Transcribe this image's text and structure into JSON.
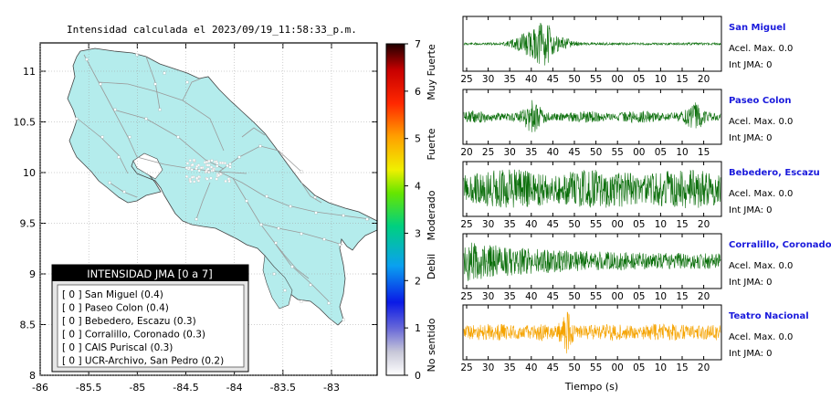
{
  "map": {
    "title": "Intensidad calculada el 2023/09/19_11:58:33_p.m.",
    "land_color": "#b4ecec",
    "x_ticks": [
      "-86",
      "-85.5",
      "-85",
      "-84.5",
      "-84",
      "-83.5",
      "-83"
    ],
    "y_ticks": [
      "11",
      "10.5",
      "10",
      "9.5",
      "9",
      "8.5",
      "8"
    ],
    "legend": {
      "title": "INTENSIDAD JMA [0 a 7]",
      "entries": [
        "[ 0 ]  San Miguel (0.4)",
        "[ 0 ]  Paseo Colon (0.4)",
        "[ 0 ]  Bebedero, Escazu (0.3)",
        "[ 0 ]  Corralillo, Coronado (0.3)",
        "[ 0 ]  CAIS Puriscal (0.3)",
        "[ 0 ]  UCR-Archivo, San Pedro (0.2)"
      ]
    }
  },
  "colorbar": {
    "ticks": [
      "7",
      "6",
      "5",
      "4",
      "3",
      "2",
      "1",
      "0"
    ],
    "labels": [
      "Muy Fuerte",
      "Fuerte",
      "Moderado",
      "Debil",
      "No sentido"
    ]
  },
  "waveforms": {
    "xlabel": "Tiempo (s)",
    "panels": [
      {
        "name": "San Miguel",
        "color": "#0a6e0a",
        "accel": "Acel. Max. 0.0",
        "int": "Int JMA: 0",
        "ticks": [
          "25",
          "30",
          "35",
          "40",
          "45",
          "50",
          "55",
          "00",
          "05",
          "10",
          "15",
          "20"
        ]
      },
      {
        "name": "Paseo Colon",
        "color": "#0a6e0a",
        "accel": "Acel. Max. 0.0",
        "int": "Int JMA: 0",
        "ticks": [
          "20",
          "25",
          "30",
          "35",
          "40",
          "45",
          "50",
          "55",
          "00",
          "05",
          "10",
          "15"
        ]
      },
      {
        "name": "Bebedero, Escazu",
        "color": "#0a6e0a",
        "accel": "Acel. Max. 0.0",
        "int": "Int JMA: 0",
        "ticks": [
          "25",
          "30",
          "35",
          "40",
          "45",
          "50",
          "55",
          "00",
          "05",
          "10",
          "15",
          "20"
        ]
      },
      {
        "name": "Corralillo, Coronado",
        "color": "#0a6e0a",
        "accel": "Acel. Max. 0.0",
        "int": "Int JMA: 0",
        "ticks": [
          "25",
          "30",
          "35",
          "40",
          "45",
          "50",
          "55",
          "00",
          "05",
          "10",
          "15",
          "20"
        ]
      },
      {
        "name": "Teatro Nacional",
        "color": "#f5a300",
        "accel": "Acel. Max. 0.0",
        "int": "Int JMA: 0",
        "ticks": [
          "25",
          "30",
          "35",
          "40",
          "45",
          "50",
          "55",
          "00",
          "05",
          "10",
          "15",
          "20"
        ]
      }
    ]
  },
  "chart_data": [
    {
      "type": "heatmap",
      "title": "Intensidad calculada el 2023/09/19_11:58:33_p.m.",
      "xlim": [
        -86,
        -82.6
      ],
      "ylim": [
        8,
        11.3
      ],
      "colorbar_range": [
        0,
        7
      ],
      "legend": "bottom-left"
    },
    {
      "type": "line",
      "xlabel": "Tiempo (s)",
      "series": [
        {
          "name": "San Miguel"
        },
        {
          "name": "Paseo Colon"
        },
        {
          "name": "Bebedero, Escazu"
        },
        {
          "name": "Corralillo, Coronado"
        },
        {
          "name": "Teatro Nacional"
        }
      ]
    }
  ]
}
